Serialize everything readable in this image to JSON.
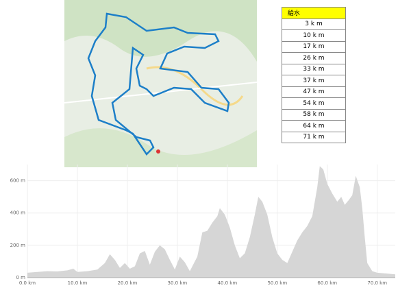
{
  "table": {
    "header": "給水",
    "rows": [
      "3 k m",
      "10 k m",
      "17 k m",
      "26 k m",
      "33 k m",
      "37 k m",
      "47 k m",
      "54 k m",
      "58 k m",
      "64 k m",
      "71 k m"
    ]
  },
  "chart_data": {
    "type": "area",
    "color": "#d6d6d6",
    "grid": true,
    "x": [
      0,
      2,
      4,
      6,
      8,
      9.2,
      10,
      12,
      14,
      15.5,
      16.5,
      17.5,
      18.5,
      19.5,
      20.5,
      21.5,
      22.5,
      23.5,
      24.5,
      25.5,
      26.5,
      27.5,
      28.5,
      29.5,
      30.5,
      31.5,
      32.5,
      34,
      35,
      36,
      37,
      38,
      38.5,
      39.5,
      40.5,
      41.5,
      42.5,
      43.5,
      44.5,
      45.5,
      46.2,
      47,
      48,
      49,
      50,
      51,
      52,
      53,
      54,
      55,
      56,
      57,
      58,
      58.5,
      59.2,
      60,
      61,
      62,
      62.8,
      63.5,
      64.3,
      65,
      65.7,
      66.5,
      67,
      67.5,
      68,
      69,
      70,
      72,
      73.6
    ],
    "values": [
      30,
      35,
      40,
      38,
      45,
      55,
      35,
      40,
      50,
      90,
      145,
      110,
      60,
      90,
      55,
      70,
      150,
      165,
      80,
      160,
      200,
      175,
      110,
      50,
      130,
      95,
      40,
      130,
      280,
      290,
      340,
      380,
      430,
      390,
      310,
      200,
      120,
      150,
      250,
      390,
      500,
      470,
      390,
      250,
      150,
      110,
      90,
      160,
      230,
      280,
      320,
      380,
      560,
      690,
      670,
      580,
      520,
      470,
      500,
      450,
      480,
      510,
      630,
      560,
      430,
      250,
      90,
      40,
      30,
      25,
      20
    ],
    "xlim": [
      0,
      73.6
    ],
    "ylim": [
      0,
      700
    ],
    "xticks": [
      {
        "value": 0,
        "label": "0.0 km"
      },
      {
        "value": 10,
        "label": "10.0 km"
      },
      {
        "value": 20,
        "label": "20.0 km"
      },
      {
        "value": 30,
        "label": "30.0 km"
      },
      {
        "value": 40,
        "label": "40.0 km"
      },
      {
        "value": 50,
        "label": "50.0 km"
      },
      {
        "value": 60,
        "label": "60.0 km"
      },
      {
        "value": 70,
        "label": "70.0 km"
      }
    ],
    "yticks": [
      {
        "value": 0,
        "label": "0 m"
      },
      {
        "value": 200,
        "label": "200 m"
      },
      {
        "value": 400,
        "label": "400 m"
      },
      {
        "value": 600,
        "label": "600 m"
      }
    ]
  }
}
